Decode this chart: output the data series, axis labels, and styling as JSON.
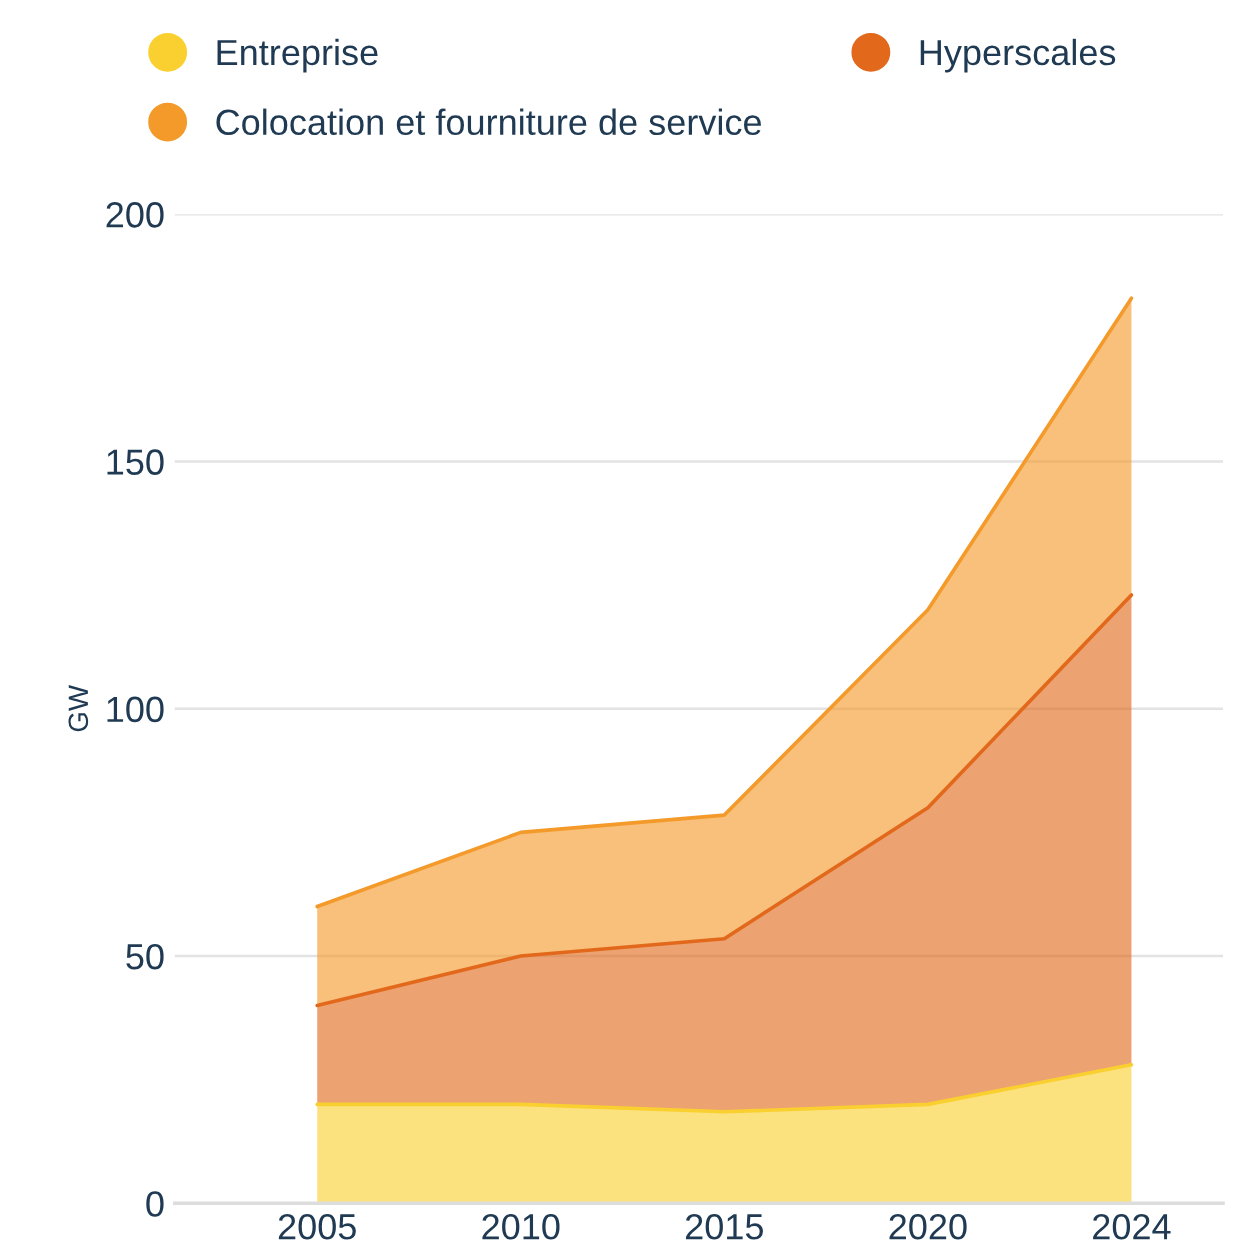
{
  "chart_data": {
    "type": "area",
    "stacked": true,
    "ylabel": "GW",
    "categories": [
      "2005",
      "2010",
      "2015",
      "2020",
      "2024"
    ],
    "series": [
      {
        "name": "Entreprise",
        "color": "#f9d030",
        "values": [
          20,
          20,
          18.5,
          20,
          28
        ]
      },
      {
        "name": "Hyperscales",
        "color": "#e2691c",
        "values": [
          20,
          30,
          35,
          60,
          95
        ]
      },
      {
        "name": "Colocation et fourniture de service",
        "color": "#f39a2a",
        "values": [
          20,
          25,
          25,
          40,
          60
        ]
      }
    ],
    "ylim": [
      0,
      200
    ],
    "yticks": [
      0,
      50,
      100,
      150,
      200
    ],
    "grid": "y",
    "legend": "top"
  }
}
